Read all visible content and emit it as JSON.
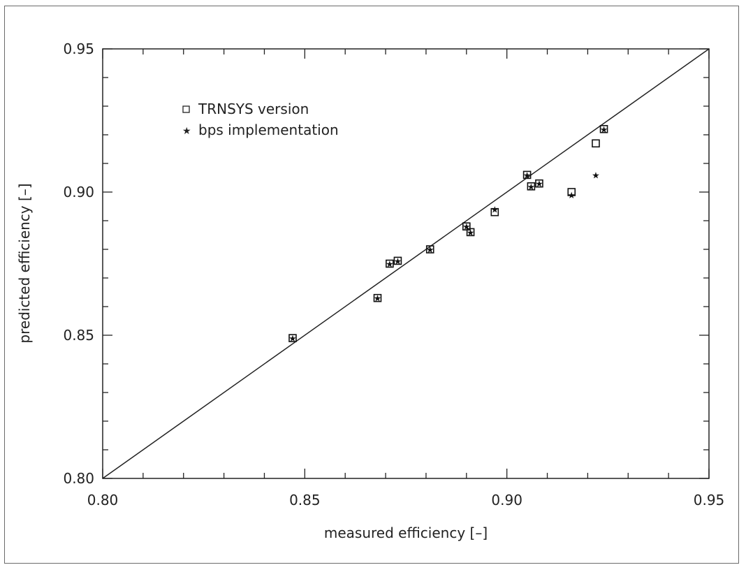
{
  "chart_data": {
    "type": "scatter",
    "title": "",
    "xlabel": "measured efficiency [–]",
    "ylabel": "predicted efficiency [–]",
    "xlim": [
      0.8,
      0.95
    ],
    "ylim": [
      0.8,
      0.95
    ],
    "x_ticks": [
      "0.80",
      "0.85",
      "0.90",
      "0.95"
    ],
    "y_ticks": [
      "0.80",
      "0.85",
      "0.90",
      "0.95"
    ],
    "grid": false,
    "legend_position": "top-left",
    "reference_line": {
      "from": [
        0.8,
        0.8
      ],
      "to": [
        0.95,
        0.95
      ]
    },
    "series": [
      {
        "name": "TRNSYS version",
        "marker": "open-square",
        "points": [
          [
            0.847,
            0.849
          ],
          [
            0.868,
            0.863
          ],
          [
            0.871,
            0.875
          ],
          [
            0.873,
            0.876
          ],
          [
            0.881,
            0.88
          ],
          [
            0.89,
            0.888
          ],
          [
            0.891,
            0.886
          ],
          [
            0.897,
            0.893
          ],
          [
            0.905,
            0.906
          ],
          [
            0.906,
            0.902
          ],
          [
            0.908,
            0.903
          ],
          [
            0.916,
            0.9
          ],
          [
            0.922,
            0.917
          ],
          [
            0.924,
            0.922
          ]
        ]
      },
      {
        "name": "bps implementation",
        "marker": "star",
        "points": [
          [
            0.847,
            0.849
          ],
          [
            0.868,
            0.863
          ],
          [
            0.871,
            0.875
          ],
          [
            0.873,
            0.876
          ],
          [
            0.881,
            0.88
          ],
          [
            0.89,
            0.888
          ],
          [
            0.891,
            0.886
          ],
          [
            0.897,
            0.894
          ],
          [
            0.905,
            0.906
          ],
          [
            0.906,
            0.902
          ],
          [
            0.908,
            0.903
          ],
          [
            0.916,
            0.899
          ],
          [
            0.922,
            0.906
          ],
          [
            0.924,
            0.922
          ]
        ]
      }
    ]
  }
}
